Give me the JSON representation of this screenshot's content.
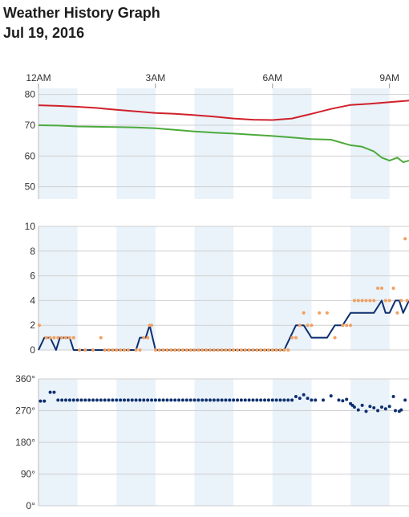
{
  "header": {
    "title": "Weather History Graph",
    "date": "Jul 19, 2016"
  },
  "colors": {
    "band": "#eaf2fa",
    "temperature": "#d0202a",
    "dew_point": "#4caa3c",
    "wind_speed": "#0d2f6e",
    "wind_gust": "#f0a060",
    "wind_direction": "#0d2f6e"
  },
  "chart_data": [
    {
      "type": "line",
      "panel": "temperature",
      "x_unit": "hours since midnight",
      "x_ticks": [
        {
          "x": 0,
          "label": "12AM"
        },
        {
          "x": 3,
          "label": "3AM"
        },
        {
          "x": 6,
          "label": "6AM"
        },
        {
          "x": 9,
          "label": "9AM"
        }
      ],
      "xlim": [
        0,
        9.5
      ],
      "ylim": [
        46,
        82
      ],
      "y_ticks": [
        50,
        60,
        70,
        80
      ],
      "shaded_bands": [
        [
          0,
          1
        ],
        [
          2,
          3
        ],
        [
          4,
          5
        ],
        [
          6,
          7
        ],
        [
          8,
          9
        ]
      ],
      "series": [
        {
          "key": "temperature",
          "x": [
            0,
            0.5,
            1,
            1.5,
            2,
            2.5,
            3,
            3.5,
            4,
            4.5,
            5,
            5.5,
            6,
            6.5,
            7,
            7.5,
            8,
            8.5,
            9,
            9.5
          ],
          "values": [
            76.5,
            76.3,
            76.0,
            75.6,
            75.0,
            74.5,
            74.0,
            73.7,
            73.3,
            72.8,
            72.2,
            71.8,
            71.7,
            72.2,
            73.7,
            75.3,
            76.6,
            77.0,
            77.5,
            78.0
          ]
        },
        {
          "key": "dew_point",
          "x": [
            0,
            0.5,
            1,
            1.5,
            2,
            2.5,
            3,
            3.5,
            4,
            4.5,
            5,
            5.5,
            6,
            6.5,
            7,
            7.5,
            8,
            8.3,
            8.6,
            8.8,
            9,
            9.2,
            9.35,
            9.5
          ],
          "values": [
            70.0,
            69.9,
            69.6,
            69.5,
            69.4,
            69.3,
            69.0,
            68.5,
            68.0,
            67.6,
            67.3,
            66.9,
            66.5,
            66.0,
            65.5,
            65.3,
            63.5,
            63.0,
            61.5,
            59.5,
            58.5,
            59.5,
            58.0,
            58.5
          ]
        }
      ]
    },
    {
      "type": "line",
      "panel": "wind_speed",
      "x_unit": "hours since midnight",
      "xlim": [
        0,
        9.5
      ],
      "ylim": [
        0,
        10
      ],
      "y_ticks": [
        0,
        2,
        4,
        6,
        8,
        10
      ],
      "shaded_bands": [
        [
          0,
          1
        ],
        [
          2,
          3
        ],
        [
          4,
          5
        ],
        [
          6,
          7
        ],
        [
          8,
          9
        ]
      ],
      "series": [
        {
          "key": "wind_speed",
          "x": [
            0,
            0.15,
            0.3,
            0.45,
            0.55,
            0.65,
            0.8,
            0.9,
            1,
            1.5,
            2,
            2.5,
            2.6,
            2.75,
            2.85,
            3,
            3.5,
            4,
            4.5,
            5,
            5.5,
            6,
            6.3,
            6.45,
            6.6,
            6.8,
            7,
            7.2,
            7.4,
            7.6,
            7.8,
            8,
            8.2,
            8.4,
            8.6,
            8.8,
            8.9,
            9,
            9.15,
            9.25,
            9.35,
            9.5
          ],
          "values": [
            0,
            1,
            1,
            0,
            1,
            1,
            1,
            0,
            0,
            0,
            0,
            0,
            1,
            1,
            2,
            0,
            0,
            0,
            0,
            0,
            0,
            0,
            0,
            1,
            2,
            2,
            1,
            1,
            1,
            2,
            2,
            3,
            3,
            3,
            3,
            4,
            3,
            3,
            4,
            4,
            3,
            4
          ]
        }
      ],
      "points": [
        {
          "key": "wind_gust",
          "x": [
            0.02,
            0.2,
            0.3,
            0.4,
            0.5,
            0.6,
            0.7,
            0.8,
            0.9,
            1.05,
            1.2,
            1.4,
            1.6,
            1.7,
            1.8,
            1.9,
            2.0,
            2.1,
            2.2,
            2.3,
            2.5,
            2.6,
            2.7,
            2.8,
            2.85,
            2.9,
            3.0,
            3.1,
            3.2,
            3.3,
            3.4,
            3.5,
            3.6,
            3.7,
            3.8,
            3.9,
            4.0,
            4.1,
            4.2,
            4.3,
            4.4,
            4.5,
            4.6,
            4.7,
            4.8,
            4.9,
            5.0,
            5.1,
            5.2,
            5.3,
            5.4,
            5.5,
            5.6,
            5.7,
            5.8,
            5.9,
            6.0,
            6.1,
            6.2,
            6.3,
            6.4,
            6.5,
            6.6,
            6.7,
            6.8,
            6.9,
            7.0,
            7.2,
            7.4,
            7.6,
            7.8,
            7.9,
            8.0,
            8.1,
            8.2,
            8.3,
            8.4,
            8.5,
            8.6,
            8.7,
            8.8,
            8.9,
            9.0,
            9.1,
            9.2,
            9.3,
            9.4,
            9.45
          ],
          "values": [
            2,
            1,
            1,
            1,
            1,
            1,
            1,
            1,
            1,
            0,
            0,
            0,
            1,
            0,
            0,
            0,
            0,
            0,
            0,
            0,
            0,
            0,
            1,
            1,
            2,
            2,
            0,
            0,
            0,
            0,
            0,
            0,
            0,
            0,
            0,
            0,
            0,
            0,
            0,
            0,
            0,
            0,
            0,
            0,
            0,
            0,
            0,
            0,
            0,
            0,
            0,
            0,
            0,
            0,
            0,
            0,
            0,
            0,
            0,
            0,
            0,
            1,
            1,
            2,
            3,
            2,
            2,
            3,
            3,
            1,
            2,
            2,
            2,
            4,
            4,
            4,
            4,
            4,
            4,
            5,
            5,
            4,
            4,
            5,
            3,
            4,
            9,
            4
          ]
        }
      ]
    },
    {
      "type": "scatter",
      "panel": "wind_direction",
      "x_unit": "hours since midnight",
      "xlim": [
        0,
        9.5
      ],
      "ylim": [
        0,
        360
      ],
      "y_ticks": [
        {
          "y": 0,
          "label": "0°"
        },
        {
          "y": 90,
          "label": "90°"
        },
        {
          "y": 180,
          "label": "180°"
        },
        {
          "y": 270,
          "label": "270°"
        },
        {
          "y": 360,
          "label": "360°"
        }
      ],
      "shaded_bands": [
        [
          0,
          1
        ],
        [
          2,
          3
        ],
        [
          4,
          5
        ],
        [
          6,
          7
        ],
        [
          8,
          9
        ]
      ],
      "series": [
        {
          "key": "wind_direction",
          "x": [
            0.05,
            0.15,
            0.3,
            0.4,
            0.5,
            0.6,
            0.7,
            0.8,
            0.9,
            1.0,
            1.1,
            1.2,
            1.3,
            1.4,
            1.5,
            1.6,
            1.7,
            1.8,
            1.9,
            2.0,
            2.1,
            2.2,
            2.3,
            2.4,
            2.5,
            2.6,
            2.7,
            2.8,
            2.9,
            3.0,
            3.1,
            3.2,
            3.3,
            3.4,
            3.5,
            3.6,
            3.7,
            3.8,
            3.9,
            4.0,
            4.1,
            4.2,
            4.3,
            4.4,
            4.5,
            4.6,
            4.7,
            4.8,
            4.9,
            5.0,
            5.1,
            5.2,
            5.3,
            5.4,
            5.5,
            5.6,
            5.7,
            5.8,
            5.9,
            6.0,
            6.1,
            6.2,
            6.3,
            6.4,
            6.5,
            6.6,
            6.7,
            6.8,
            6.9,
            7.0,
            7.1,
            7.3,
            7.5,
            7.7,
            7.8,
            7.9,
            8.0,
            8.05,
            8.1,
            8.2,
            8.3,
            8.4,
            8.5,
            8.6,
            8.7,
            8.8,
            8.9,
            9.0,
            9.1,
            9.15,
            9.25,
            9.3,
            9.4
          ],
          "values": [
            297,
            297,
            322,
            322,
            300,
            300,
            300,
            300,
            300,
            300,
            300,
            300,
            300,
            300,
            300,
            300,
            300,
            300,
            300,
            300,
            300,
            300,
            300,
            300,
            300,
            300,
            300,
            300,
            300,
            300,
            300,
            300,
            300,
            300,
            300,
            300,
            300,
            300,
            300,
            300,
            300,
            300,
            300,
            300,
            300,
            300,
            300,
            300,
            300,
            300,
            300,
            300,
            300,
            300,
            300,
            300,
            300,
            300,
            300,
            300,
            300,
            300,
            300,
            300,
            300,
            310,
            305,
            315,
            305,
            300,
            300,
            300,
            312,
            300,
            298,
            302,
            290,
            285,
            280,
            272,
            285,
            268,
            282,
            278,
            270,
            280,
            275,
            282,
            310,
            270,
            268,
            272,
            300
          ]
        }
      ]
    }
  ]
}
